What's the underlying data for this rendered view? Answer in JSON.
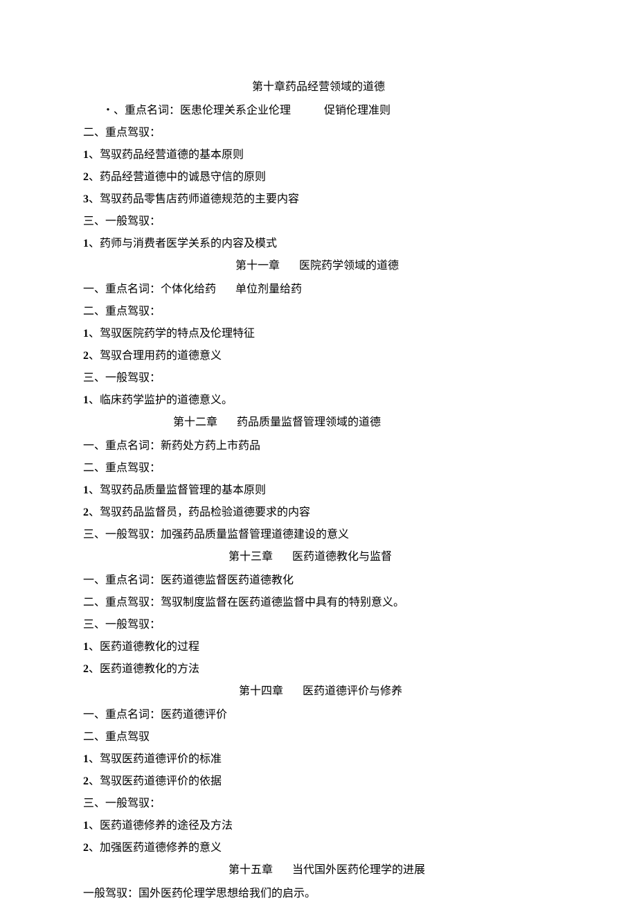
{
  "ch10": {
    "title": "第十章药品经营领域的道德",
    "l1_a": "・、重点名词：医患伦理关系企业伦理",
    "l1_b": "促销伦理准则",
    "l2": "二、重点驾驭：",
    "i1n": "1",
    "i1t": "、驾驭药品经营道德的基本原则",
    "i2n": "2",
    "i2t": "、药品经营道德中的诚恳守信的原则",
    "i3n": "3",
    "i3t": "、驾驭药品零售店药师道德规范的主要内容",
    "l3": "三、一般驾驭：",
    "j1n": "1",
    "j1t": "、药师与消费者医学关系的内容及模式"
  },
  "ch11": {
    "title_a": "第十一章",
    "title_b": "医院药学领域的道德",
    "l1_a": "一、重点名词：个体化给药",
    "l1_b": "单位剂量给药",
    "l2": "二、重点驾驭：",
    "i1n": "1",
    "i1t": "、驾驭医院药学的特点及伦理特征",
    "i2n": "2",
    "i2t": "、驾驭合理用药的道德意义",
    "l3": "三、一般驾驭：",
    "j1n": "1",
    "j1t": "、临床药学监护的道德意义。"
  },
  "ch12": {
    "title_a": "第十二章",
    "title_b": "药品质量监督管理领域的道德",
    "l1": "一、重点名词：新药处方药上市药品",
    "l2": "二、重点驾驭：",
    "i1n": "1",
    "i1t": "、驾驭药品质量监督管理的基本原则",
    "i2n": "2",
    "i2t": "、驾驭药品监督员，药品检验道德要求的内容",
    "l3": "三、一般驾驭：加强药品质量监督管理道德建设的意义"
  },
  "ch13": {
    "title_a": "第十三章",
    "title_b": "医药道德教化与监督",
    "l1": "一、重点名词：医药道德监督医药道德教化",
    "l2": "二、重点驾驭：驾驭制度监督在医药道德监督中具有的特别意义。",
    "l3": "三、一般驾驭：",
    "j1n": "1",
    "j1t": "、医药道德教化的过程",
    "j2n": "2",
    "j2t": "、医药道德教化的方法"
  },
  "ch14": {
    "title_a": "第十四章",
    "title_b": "医药道德评价与修养",
    "l1": "一、重点名词：医药道德评价",
    "l2": "二、重点驾驭",
    "i1n": "1",
    "i1t": "、驾驭医药道德评价的标准",
    "i2n": "2",
    "i2t": "、驾驭医药道德评价的依据",
    "l3": "三、一般驾驭：",
    "j1n": "1",
    "j1t": "、医药道德修养的途径及方法",
    "j2n": "2",
    "j2t": "、加强医药道德修养的意义"
  },
  "ch15": {
    "title_a": "第十五章",
    "title_b": "当代国外医药伦理学的进展",
    "l1": "一般驾驭：国外医药伦理学思想给我们的启示。"
  }
}
